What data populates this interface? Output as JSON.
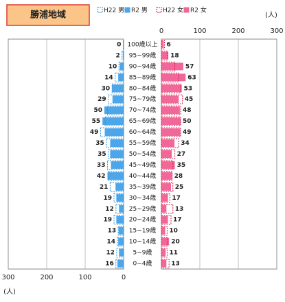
{
  "chart_data": {
    "type": "pyramid",
    "title": "勝浦地域",
    "xlabel": "(人)",
    "categories": [
      "100歳以上",
      "95~99歳",
      "90~94歳",
      "85~89歳",
      "80~84歳",
      "75~79歳",
      "70~74歳",
      "65~69歳",
      "60~64歳",
      "55~59歳",
      "50~54歳",
      "45~49歳",
      "40~44歳",
      "35~39歳",
      "30~34歳",
      "25~29歳",
      "20~24歳",
      "15~19歳",
      "10~14歳",
      "5~9歳",
      "0~4歳"
    ],
    "series": [
      {
        "name": "H22 男",
        "color": "#2f8fd6",
        "side": "left",
        "style": "dashed",
        "values": [
          1,
          4,
          12,
          22,
          30,
          40,
          42,
          48,
          60,
          45,
          40,
          42,
          40,
          35,
          25,
          20,
          25,
          14,
          16,
          18,
          20
        ]
      },
      {
        "name": "R2 男",
        "color": "#4da6ea",
        "side": "left",
        "style": "filled",
        "values": [
          0,
          2,
          10,
          14,
          30,
          29,
          50,
          55,
          49,
          35,
          35,
          33,
          42,
          21,
          19,
          12,
          19,
          13,
          14,
          12,
          16
        ]
      },
      {
        "name": "H22 女",
        "color": "#d9163f",
        "side": "right",
        "style": "dashed",
        "values": [
          8,
          15,
          35,
          45,
          50,
          55,
          50,
          50,
          50,
          45,
          35,
          30,
          28,
          30,
          22,
          30,
          25,
          15,
          15,
          15,
          20
        ]
      },
      {
        "name": "R2 女",
        "color": "#f2679a",
        "side": "right",
        "style": "filled",
        "values": [
          6,
          18,
          57,
          63,
          53,
          45,
          48,
          50,
          49,
          34,
          27,
          35,
          28,
          25,
          17,
          13,
          17,
          10,
          20,
          11,
          13
        ]
      }
    ],
    "xlim": [
      0,
      300
    ],
    "xticks": [
      0,
      100,
      200,
      300
    ]
  }
}
